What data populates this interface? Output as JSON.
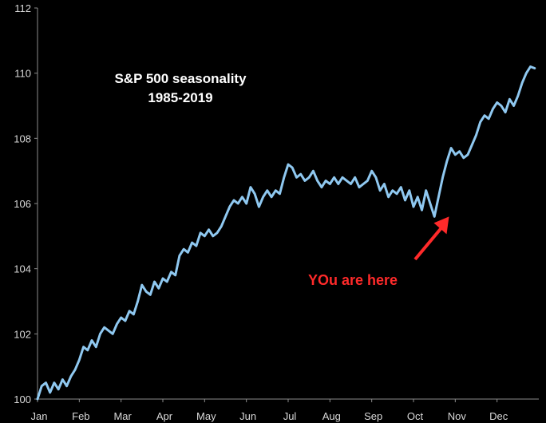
{
  "chart_data": {
    "type": "line",
    "title": "S&P 500 seasonality",
    "subtitle": "1985-2019",
    "xlabel": "",
    "ylabel": "",
    "ylim": [
      100,
      112
    ],
    "yticks": [
      "100",
      "102",
      "104",
      "106",
      "108",
      "110",
      "112"
    ],
    "xticks": [
      "Jan",
      "Feb",
      "Mar",
      "Apr",
      "May",
      "Jun",
      "Jul",
      "Aug",
      "Sep",
      "Oct",
      "Nov",
      "Dec"
    ],
    "grid": false,
    "colors": {
      "line": "#8fc8f0",
      "annotation": "#ff2a2a",
      "background": "#000000",
      "axis": "#8c8c8c"
    },
    "annotation": {
      "text": "YOu are here",
      "x": 9.85,
      "y": 105.6
    },
    "series": [
      {
        "x": [
          0.0,
          0.1,
          0.2,
          0.3,
          0.4,
          0.5,
          0.6,
          0.7,
          0.8,
          0.9,
          1.0,
          1.1,
          1.2,
          1.3,
          1.4,
          1.5,
          1.6,
          1.7,
          1.8,
          1.9,
          2.0,
          2.1,
          2.2,
          2.3,
          2.4,
          2.5,
          2.6,
          2.7,
          2.8,
          2.9,
          3.0,
          3.1,
          3.2,
          3.3,
          3.4,
          3.5,
          3.6,
          3.7,
          3.8,
          3.9,
          4.0,
          4.1,
          4.2,
          4.3,
          4.4,
          4.5,
          4.6,
          4.7,
          4.8,
          4.9,
          5.0,
          5.1,
          5.2,
          5.3,
          5.4,
          5.5,
          5.6,
          5.7,
          5.8,
          5.9,
          6.0,
          6.1,
          6.2,
          6.3,
          6.4,
          6.5,
          6.6,
          6.7,
          6.8,
          6.9,
          7.0,
          7.1,
          7.2,
          7.3,
          7.4,
          7.5,
          7.6,
          7.7,
          7.8,
          7.9,
          8.0,
          8.1,
          8.2,
          8.3,
          8.4,
          8.5,
          8.6,
          8.7,
          8.8,
          8.9,
          9.0,
          9.1,
          9.2,
          9.3,
          9.4,
          9.5,
          9.6,
          9.7,
          9.8,
          9.9,
          10.0,
          10.1,
          10.2,
          10.3,
          10.4,
          10.5,
          10.6,
          10.7,
          10.8,
          10.9,
          11.0,
          11.1,
          11.2,
          11.3,
          11.4,
          11.5,
          11.6,
          11.7,
          11.8,
          11.9
        ],
        "y": [
          100.0,
          100.4,
          100.5,
          100.2,
          100.5,
          100.3,
          100.6,
          100.4,
          100.7,
          100.9,
          101.2,
          101.6,
          101.5,
          101.8,
          101.6,
          102.0,
          102.2,
          102.1,
          102.0,
          102.3,
          102.5,
          102.4,
          102.7,
          102.6,
          103.0,
          103.5,
          103.3,
          103.2,
          103.6,
          103.4,
          103.7,
          103.6,
          103.9,
          103.8,
          104.4,
          104.6,
          104.5,
          104.8,
          104.7,
          105.1,
          105.0,
          105.2,
          105.0,
          105.1,
          105.3,
          105.6,
          105.9,
          106.1,
          106.0,
          106.2,
          106.0,
          106.5,
          106.3,
          105.9,
          106.2,
          106.4,
          106.2,
          106.4,
          106.3,
          106.8,
          107.2,
          107.1,
          106.8,
          106.9,
          106.7,
          106.8,
          107.0,
          106.7,
          106.5,
          106.7,
          106.6,
          106.8,
          106.6,
          106.8,
          106.7,
          106.6,
          106.8,
          106.5,
          106.6,
          106.7,
          107.0,
          106.8,
          106.4,
          106.6,
          106.2,
          106.4,
          106.3,
          106.5,
          106.1,
          106.4,
          105.9,
          106.2,
          105.8,
          106.4,
          106.0,
          105.6,
          106.2,
          106.8,
          107.3,
          107.7,
          107.5,
          107.6,
          107.4,
          107.5,
          107.8,
          108.1,
          108.5,
          108.7,
          108.6,
          108.9,
          109.1,
          109.0,
          108.8,
          109.2,
          109.0,
          109.3,
          109.7,
          110.0,
          110.2,
          110.15
        ]
      }
    ]
  }
}
